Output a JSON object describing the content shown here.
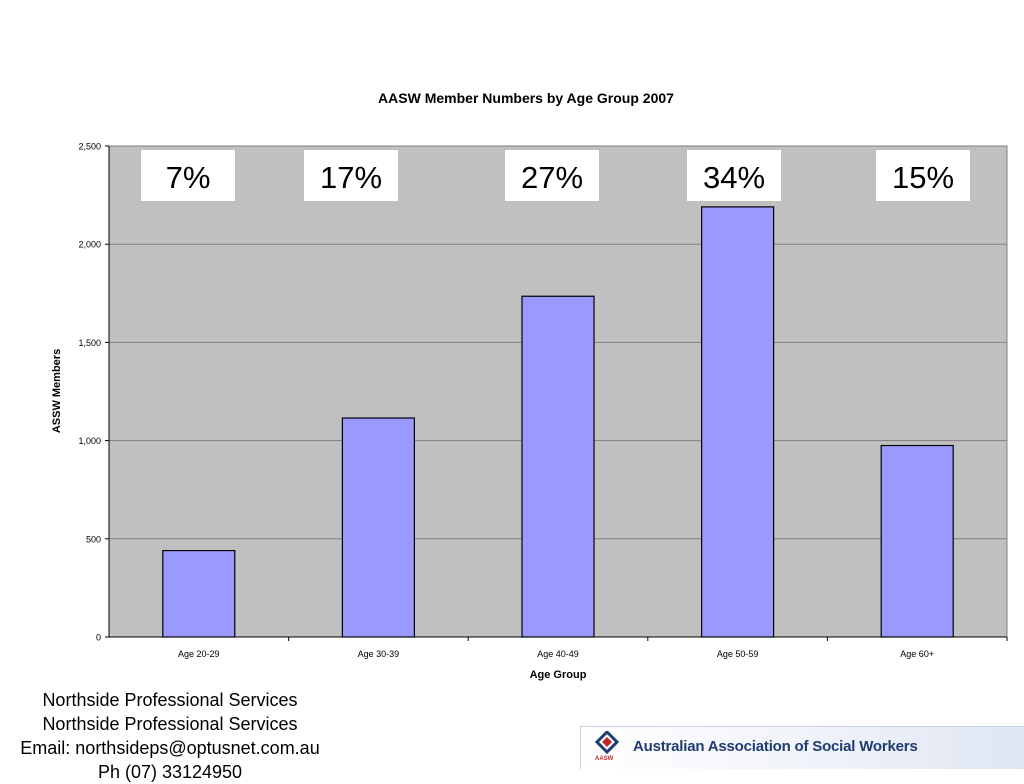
{
  "chart_data": {
    "type": "bar",
    "title": "AASW Member Numbers by Age Group 2007",
    "xlabel": "Age Group",
    "ylabel": "ASSW Members",
    "categories": [
      "Age 20-29",
      "Age 30-39",
      "Age 40-49",
      "Age 50-59",
      "Age 60+"
    ],
    "values": [
      440,
      1115,
      1735,
      2190,
      975
    ],
    "ylim": [
      0,
      2500
    ],
    "yticks": [
      0,
      500,
      1000,
      1500,
      2000,
      2500
    ],
    "ytick_labels": [
      "0",
      "500",
      "1,000",
      "1,500",
      "2,000",
      "2,500"
    ],
    "annotations": [
      "7%",
      "17%",
      "27%",
      "34%",
      "15%"
    ],
    "grid": true,
    "legend": "none",
    "colors": {
      "bar_fill": "#9999ff",
      "bar_stroke": "#000000",
      "plot_bg": "#c0c0c0",
      "gridline": "#808080"
    }
  },
  "footer": {
    "lines": [
      "Northside Professional Services",
      "Northside Professional Services",
      "Email: northsideps@optusnet.com.au",
      "Ph (07) 33124950"
    ]
  },
  "logo": {
    "text": "Australian Association of Social Workers",
    "abbr": "AASW",
    "icon": "aasw-diamond-icon"
  }
}
